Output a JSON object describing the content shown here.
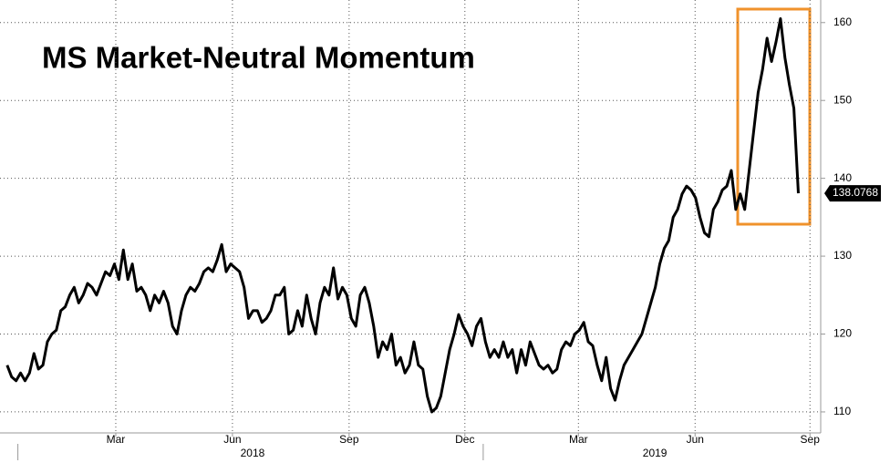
{
  "chart_data": {
    "type": "line",
    "title": "MS Market-Neutral Momentum",
    "x": [
      0,
      1,
      2,
      3,
      4,
      5,
      6,
      7,
      8,
      9,
      10,
      11,
      12,
      13,
      14,
      15,
      16,
      17,
      18,
      19,
      20,
      21,
      22,
      23,
      24,
      25,
      26,
      27,
      28,
      29,
      30,
      31,
      32,
      33,
      34,
      35,
      36,
      37,
      38,
      39,
      40,
      41,
      42,
      43,
      44,
      45,
      46,
      47,
      48,
      49,
      50,
      51,
      52,
      53,
      54,
      55,
      56,
      57,
      58,
      59,
      60,
      61,
      62,
      63,
      64,
      65,
      66,
      67,
      68,
      69,
      70,
      71,
      72,
      73,
      74,
      75,
      76,
      77,
      78,
      79,
      80,
      81,
      82,
      83,
      84,
      85,
      86,
      87,
      88,
      89,
      90,
      91,
      92,
      93,
      94,
      95,
      96,
      97,
      98,
      99,
      100,
      101,
      102,
      103,
      104,
      105,
      106,
      107,
      108,
      109,
      110,
      111,
      112,
      113,
      114,
      115,
      116,
      117,
      118,
      119,
      120,
      121,
      122,
      123,
      124,
      125,
      126,
      127,
      128,
      129,
      130,
      131,
      132,
      133,
      134,
      135,
      136,
      137,
      138,
      139,
      140,
      141,
      142,
      143,
      144,
      145,
      146,
      147,
      148,
      149,
      150,
      151,
      152,
      153,
      154,
      155,
      156,
      157,
      158,
      159,
      160,
      161,
      162,
      163,
      164,
      165,
      166,
      167,
      168,
      169,
      170,
      171,
      172,
      173,
      174,
      175,
      176,
      177
    ],
    "series": [
      {
        "color": "#000000",
        "values": [
          116,
          114.5,
          114,
          115,
          114,
          115,
          117.5,
          115.5,
          116,
          119,
          120,
          120.5,
          123,
          123.5,
          125,
          126,
          124,
          125,
          126.5,
          126,
          125,
          126.5,
          128,
          127.5,
          129,
          127,
          130.8,
          127,
          129,
          125.5,
          126,
          125,
          123,
          125,
          124,
          125.5,
          124,
          121,
          120,
          123,
          125,
          126,
          125.5,
          126.5,
          128,
          128.5,
          128,
          129.5,
          131.5,
          128,
          129,
          128.5,
          128,
          126,
          122,
          123,
          123,
          121.5,
          122,
          123,
          125,
          125,
          126,
          120,
          120.5,
          123,
          121,
          125,
          122,
          120,
          124,
          126,
          125,
          128.5,
          124.5,
          126,
          125,
          122,
          121,
          125,
          126,
          124,
          121,
          117,
          119,
          118,
          120,
          116,
          117,
          115,
          116,
          119,
          116,
          115.5,
          112,
          110,
          110.5,
          112,
          115,
          118,
          120,
          122.5,
          121,
          120,
          118.5,
          121,
          122,
          119,
          117,
          118,
          117,
          119,
          117,
          118,
          115,
          118,
          116,
          119,
          117.5,
          116,
          115.5,
          116,
          115,
          115.5,
          118,
          119,
          118.5,
          120,
          120.5,
          121.5,
          119,
          118.5,
          116,
          114,
          117,
          113,
          111.5,
          114,
          116,
          117,
          118,
          119,
          120,
          122,
          124,
          126,
          129,
          131,
          132,
          135,
          136,
          138,
          139,
          138.5,
          137.5,
          135,
          133,
          132.5,
          136,
          137,
          138.5,
          139,
          141,
          136,
          138,
          136,
          141,
          146,
          151,
          154,
          158,
          155,
          157.5,
          160.5,
          155.5,
          152,
          149,
          138.0768
        ]
      }
    ],
    "xlim": [
      -1.6,
      182
    ],
    "xticks": [
      {
        "value": 24.3,
        "label": "Mar"
      },
      {
        "value": 50.4,
        "label": "Jun"
      },
      {
        "value": 76.5,
        "label": "Sep"
      },
      {
        "value": 102.4,
        "label": "Dec"
      },
      {
        "value": 127.8,
        "label": "Mar"
      },
      {
        "value": 153.9,
        "label": "Jun"
      },
      {
        "value": 179.6,
        "label": "Sep"
      }
    ],
    "xyears": [
      {
        "value": 54.9,
        "label": "2018"
      },
      {
        "value": 144.9,
        "label": "2019"
      }
    ],
    "xyear_dividers": [
      2.4,
      106.5
    ],
    "ylim": [
      107.3,
      162.9
    ],
    "yticks": [
      110,
      120,
      130,
      140,
      150,
      160
    ],
    "grid": true
  }
}
